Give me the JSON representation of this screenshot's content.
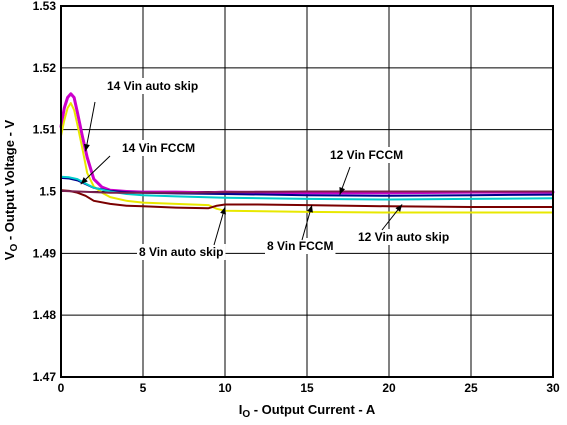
{
  "chart_data": {
    "type": "line",
    "xlabel": {
      "main": "I",
      "sub": "O",
      "rest": " - Output Current - A"
    },
    "ylabel": {
      "main": "V",
      "sub": "O",
      "rest": " - Output Voltage - V"
    },
    "xlim": [
      0,
      30
    ],
    "ylim": [
      1.47,
      1.53
    ],
    "x_ticks": [
      0,
      5,
      10,
      15,
      20,
      25,
      30
    ],
    "y_ticks": [
      1.47,
      1.48,
      1.49,
      1.5,
      1.51,
      1.52,
      1.53
    ],
    "x_tick_labels": [
      "0",
      "5",
      "10",
      "15",
      "20",
      "25",
      "30"
    ],
    "y_tick_labels": [
      "1.47",
      "1.48",
      "1.49",
      "1.5",
      "1.51",
      "1.52",
      "1.53"
    ],
    "grid": true,
    "legend": "none",
    "series": [
      {
        "name": "14 Vin auto skip",
        "color": "#cc00cc",
        "line_width": 3,
        "x": [
          0,
          0.2,
          0.4,
          0.6,
          0.8,
          1.0,
          1.3,
          1.6,
          2.0,
          2.5,
          3.0,
          4.0,
          5.0,
          7.0,
          9.0,
          10.0,
          15.0,
          20.0,
          25.0,
          30.0
        ],
        "y": [
          1.5105,
          1.5135,
          1.5152,
          1.5158,
          1.5152,
          1.5128,
          1.509,
          1.5055,
          1.502,
          1.5007,
          1.5002,
          1.5,
          1.4999,
          1.4999,
          1.4998,
          1.4999,
          1.4998,
          1.4998,
          1.4999,
          1.4999
        ]
      },
      {
        "name": "14 Vin FCCM",
        "color": "#e8e800",
        "line_width": 2,
        "x": [
          0,
          0.2,
          0.4,
          0.6,
          0.8,
          1.0,
          1.3,
          1.6,
          2.0,
          2.5,
          3.0,
          4.0,
          5.0,
          7.0,
          9.0,
          9.5,
          10.0,
          15.0,
          20.0,
          25.0,
          30.0
        ],
        "y": [
          1.509,
          1.5115,
          1.5135,
          1.5143,
          1.5132,
          1.5108,
          1.507,
          1.503,
          1.5008,
          1.4998,
          1.4991,
          1.4985,
          1.4982,
          1.498,
          1.4978,
          1.4972,
          1.4969,
          1.4967,
          1.4966,
          1.4966,
          1.4966
        ]
      },
      {
        "name": "12 Vin FCCM",
        "color": "#00008b",
        "line_width": 2,
        "x": [
          0,
          0.5,
          1.0,
          1.5,
          2.0,
          3.0,
          4.0,
          5.0,
          7.0,
          10.0,
          15.0,
          20.0,
          25.0,
          30.0
        ],
        "y": [
          1.5022,
          1.5021,
          1.5018,
          1.5012,
          1.5006,
          1.5001,
          1.4999,
          1.4998,
          1.4997,
          1.4996,
          1.4994,
          1.4993,
          1.4994,
          1.4995
        ]
      },
      {
        "name": "12 Vin auto skip",
        "color": "#00cccc",
        "line_width": 2,
        "x": [
          0,
          0.5,
          1.0,
          1.5,
          2.0,
          3.0,
          4.0,
          5.0,
          7.0,
          10.0,
          15.0,
          20.0,
          25.0,
          30.0
        ],
        "y": [
          1.5024,
          1.5023,
          1.502,
          1.5013,
          1.5006,
          1.5,
          1.4996,
          1.4994,
          1.4992,
          1.499,
          1.4988,
          1.4987,
          1.4988,
          1.4989
        ]
      },
      {
        "name": "8 Vin auto skip",
        "color": "#7a0000",
        "line_width": 2,
        "x": [
          0,
          0.5,
          1.0,
          1.5,
          2.0,
          3.0,
          4.0,
          5.0,
          7.0,
          9.0,
          9.5,
          10.0,
          12.0,
          15.0,
          20.0,
          25.0,
          30.0
        ],
        "y": [
          1.5002,
          1.5001,
          1.4998,
          1.4993,
          1.4985,
          1.498,
          1.4977,
          1.4976,
          1.4974,
          1.4973,
          1.4977,
          1.4979,
          1.4979,
          1.4978,
          1.4976,
          1.4975,
          1.4975
        ]
      },
      {
        "name": "8 Vin FCCM",
        "color": "#7a1f4e",
        "line_width": 2,
        "x": [
          0,
          1.0,
          2.0,
          3.0,
          5.0,
          8.0,
          10.0,
          15.0,
          20.0,
          25.0,
          30.0
        ],
        "y": [
          1.5001,
          1.5,
          1.4999,
          1.4998,
          1.4998,
          1.4998,
          1.4999,
          1.5,
          1.5,
          1.5,
          1.5
        ]
      }
    ],
    "annotations": [
      {
        "text": "14 Vin  auto skip",
        "target_x": 1.5,
        "target_y": 1.5065
      },
      {
        "text": "14 Vin  FCCM",
        "target_x": 1.2,
        "target_y": 1.5012
      },
      {
        "text": "12 Vin  FCCM",
        "target_x": 17.0,
        "target_y": 1.4995
      },
      {
        "text": "8 Vin  auto skip",
        "target_x": 10.0,
        "target_y": 1.4975
      },
      {
        "text": "8 Vin  FCCM",
        "target_x": 15.3,
        "target_y": 1.4978
      },
      {
        "text": "12 Vin  auto skip",
        "target_x": 20.8,
        "target_y": 1.4979
      }
    ]
  }
}
